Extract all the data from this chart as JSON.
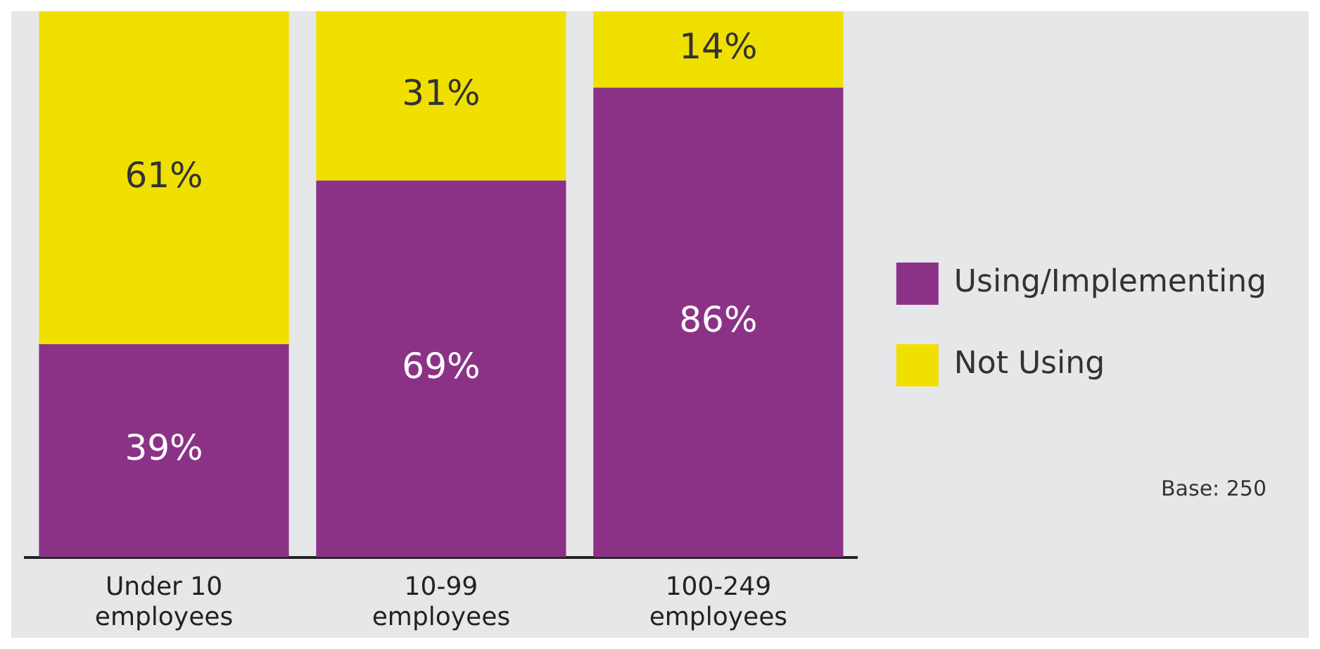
{
  "chart_data": {
    "type": "bar",
    "stacked": true,
    "categories": [
      "Under 10 employees",
      "10-99 employees",
      "100-249 employees"
    ],
    "series": [
      {
        "name": "Using/Implementing",
        "color": "#8b3287",
        "values": [
          39,
          69,
          86
        ],
        "value_labels": [
          "39%",
          "69%",
          "86%"
        ]
      },
      {
        "name": "Not Using",
        "color": "#f0e000",
        "values": [
          61,
          31,
          14
        ],
        "value_labels": [
          "61%",
          "31%",
          "14%"
        ]
      }
    ],
    "tick_labels": "x",
    "legend": "right",
    "annotations": [
      "Base: 250"
    ]
  }
}
